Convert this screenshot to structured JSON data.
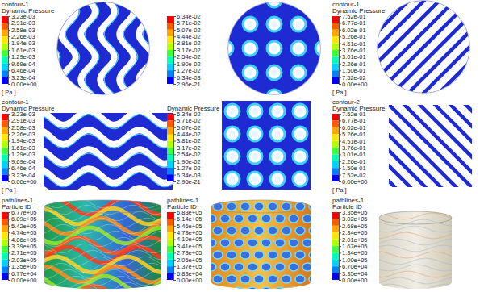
{
  "chart_data": [
    {
      "type": "contour",
      "title": "contour-1",
      "subtitle": "Dynamic Pressure",
      "unit": "[ Pa ]",
      "colorbar": {
        "range": [
          0,
          0.00323
        ],
        "ticks": [
          {
            "value": 0.00323,
            "label": "3.23e-03"
          },
          {
            "value": 0.00291,
            "label": "2.91e-03"
          },
          {
            "value": 0.00258,
            "label": "2.58e-03"
          },
          {
            "value": 0.00226,
            "label": "2.26e-03"
          },
          {
            "value": 0.00194,
            "label": "1.94e-03"
          },
          {
            "value": 0.00161,
            "label": "1.61e-03"
          },
          {
            "value": 0.00129,
            "label": "1.29e-03"
          },
          {
            "value": 0.000969,
            "label": "9.69e-04"
          },
          {
            "value": 0.000646,
            "label": "6.46e-04"
          },
          {
            "value": 0.000323,
            "label": "3.23e-04"
          },
          {
            "value": 0,
            "label": "0.00e+00"
          }
        ]
      }
    },
    {
      "type": "contour",
      "colorbar": {
        "range": [
          2.96e-21,
          0.0634
        ],
        "ticks": [
          {
            "value": 0.0634,
            "label": "6.34e-02"
          },
          {
            "value": 0.0571,
            "label": "5.71e-02"
          },
          {
            "value": 0.0507,
            "label": "5.07e-02"
          },
          {
            "value": 0.0444,
            "label": "4.44e-02"
          },
          {
            "value": 0.0381,
            "label": "3.81e-02"
          },
          {
            "value": 0.0317,
            "label": "3.17e-02"
          },
          {
            "value": 0.0254,
            "label": "2.54e-02"
          },
          {
            "value": 0.019,
            "label": "1.90e-02"
          },
          {
            "value": 0.0127,
            "label": "1.27e-02"
          },
          {
            "value": 0.00634,
            "label": "6.34e-03"
          },
          {
            "value": 2.96e-21,
            "label": "2.96e-21"
          }
        ]
      }
    },
    {
      "type": "contour",
      "title": "contour-1",
      "subtitle": "Dynamic Pressure",
      "unit": "[ Pa ]",
      "colorbar": {
        "range": [
          0,
          0.752
        ],
        "ticks": [
          {
            "value": 0.752,
            "label": "7.52e-01"
          },
          {
            "value": 0.677,
            "label": "6.77e-01"
          },
          {
            "value": 0.602,
            "label": "6.02e-01"
          },
          {
            "value": 0.526,
            "label": "5.26e-01"
          },
          {
            "value": 0.451,
            "label": "4.51e-01"
          },
          {
            "value": 0.376,
            "label": "3.76e-01"
          },
          {
            "value": 0.301,
            "label": "3.01e-01"
          },
          {
            "value": 0.226,
            "label": "2.26e-01"
          },
          {
            "value": 0.15,
            "label": "1.50e-01"
          },
          {
            "value": 0.0752,
            "label": "7.52e-02"
          },
          {
            "value": 0,
            "label": "0.00e+00"
          }
        ]
      }
    },
    {
      "type": "contour",
      "title": "contour-1",
      "subtitle": "Dynamic Pressure",
      "unit": "[ Pa ]",
      "colorbar": {
        "range": [
          0,
          0.00323
        ],
        "ticks": [
          {
            "value": 0.00323,
            "label": "3.23e-03"
          },
          {
            "value": 0.00291,
            "label": "2.91e-03"
          },
          {
            "value": 0.00258,
            "label": "2.58e-03"
          },
          {
            "value": 0.00226,
            "label": "2.26e-03"
          },
          {
            "value": 0.00194,
            "label": "1.94e-03"
          },
          {
            "value": 0.00161,
            "label": "1.61e-03"
          },
          {
            "value": 0.00129,
            "label": "1.29e-03"
          },
          {
            "value": 0.000969,
            "label": "9.69e-04"
          },
          {
            "value": 0.000646,
            "label": "6.46e-04"
          },
          {
            "value": 0.000323,
            "label": "3.23e-04"
          },
          {
            "value": 0,
            "label": "0.00e+00"
          }
        ]
      }
    },
    {
      "type": "contour",
      "subtitle": "Dynamic Pressure",
      "colorbar": {
        "range": [
          2.96e-21,
          0.0634
        ],
        "ticks": [
          {
            "value": 0.0634,
            "label": "6.34e-02"
          },
          {
            "value": 0.0571,
            "label": "5.71e-02"
          },
          {
            "value": 0.0507,
            "label": "5.07e-02"
          },
          {
            "value": 0.0444,
            "label": "4.44e-02"
          },
          {
            "value": 0.0381,
            "label": "3.81e-02"
          },
          {
            "value": 0.0317,
            "label": "3.17e-02"
          },
          {
            "value": 0.0254,
            "label": "2.54e-02"
          },
          {
            "value": 0.019,
            "label": "1.90e-02"
          },
          {
            "value": 0.0127,
            "label": "1.27e-02"
          },
          {
            "value": 0.00634,
            "label": "6.34e-03"
          },
          {
            "value": 2.96e-21,
            "label": "2.96e-21"
          }
        ]
      }
    },
    {
      "type": "contour",
      "title": "contour-2",
      "subtitle": "Dynamic Pressure",
      "unit": "[ Pa ]",
      "colorbar": {
        "range": [
          0,
          0.752
        ],
        "ticks": [
          {
            "value": 0.752,
            "label": "7.52e-01"
          },
          {
            "value": 0.677,
            "label": "6.77e-01"
          },
          {
            "value": 0.602,
            "label": "6.02e-01"
          },
          {
            "value": 0.526,
            "label": "5.26e-01"
          },
          {
            "value": 0.451,
            "label": "4.51e-01"
          },
          {
            "value": 0.376,
            "label": "3.76e-01"
          },
          {
            "value": 0.301,
            "label": "3.01e-01"
          },
          {
            "value": 0.226,
            "label": "2.26e-01"
          },
          {
            "value": 0.15,
            "label": "1.50e-01"
          },
          {
            "value": 0.0752,
            "label": "7.52e-02"
          },
          {
            "value": 0,
            "label": "0.00e+00"
          }
        ]
      }
    },
    {
      "type": "pathlines",
      "title": "pathlines-1",
      "subtitle": "Particle ID",
      "colorbar": {
        "range": [
          0,
          677000
        ],
        "ticks": [
          {
            "value": 677000,
            "label": "6.77e+05"
          },
          {
            "value": 609000,
            "label": "6.09e+05"
          },
          {
            "value": 542000,
            "label": "5.42e+05"
          },
          {
            "value": 474000,
            "label": "4.74e+05"
          },
          {
            "value": 406000,
            "label": "4.06e+05"
          },
          {
            "value": 339000,
            "label": "3.39e+05"
          },
          {
            "value": 271000,
            "label": "2.71e+05"
          },
          {
            "value": 203000,
            "label": "2.03e+05"
          },
          {
            "value": 135000,
            "label": "1.35e+05"
          },
          {
            "value": 67700,
            "label": "6.77e+04"
          },
          {
            "value": 0,
            "label": "0.00e+00"
          }
        ]
      }
    },
    {
      "type": "pathlines",
      "title": "pathlines-1",
      "subtitle": "Particle ID",
      "colorbar": {
        "range": [
          0,
          683000
        ],
        "ticks": [
          {
            "value": 683000,
            "label": "6.83e+05"
          },
          {
            "value": 614000,
            "label": "6.14e+05"
          },
          {
            "value": 546000,
            "label": "5.46e+05"
          },
          {
            "value": 478000,
            "label": "4.78e+05"
          },
          {
            "value": 410000,
            "label": "4.10e+05"
          },
          {
            "value": 341000,
            "label": "3.41e+05"
          },
          {
            "value": 273000,
            "label": "2.73e+05"
          },
          {
            "value": 205000,
            "label": "2.05e+05"
          },
          {
            "value": 137000,
            "label": "1.37e+05"
          },
          {
            "value": 68300,
            "label": "6.83e+04"
          },
          {
            "value": 0,
            "label": "0.00e+00"
          }
        ]
      }
    },
    {
      "type": "pathlines",
      "title": "pathlines-1",
      "subtitle": "Particle ID",
      "colorbar": {
        "range": [
          0,
          335000
        ],
        "ticks": [
          {
            "value": 335000,
            "label": "3.35e+05"
          },
          {
            "value": 302000,
            "label": "3.02e+05"
          },
          {
            "value": 268000,
            "label": "2.68e+05"
          },
          {
            "value": 234000,
            "label": "2.34e+05"
          },
          {
            "value": 201000,
            "label": "2.01e+05"
          },
          {
            "value": 167000,
            "label": "1.67e+05"
          },
          {
            "value": 134000,
            "label": "1.34e+05"
          },
          {
            "value": 100000,
            "label": "1.00e+05"
          },
          {
            "value": 67000,
            "label": "6.70e+04"
          },
          {
            "value": 33500,
            "label": "3.35e+04"
          },
          {
            "value": 0,
            "label": "0.00e+00"
          }
        ]
      }
    }
  ]
}
